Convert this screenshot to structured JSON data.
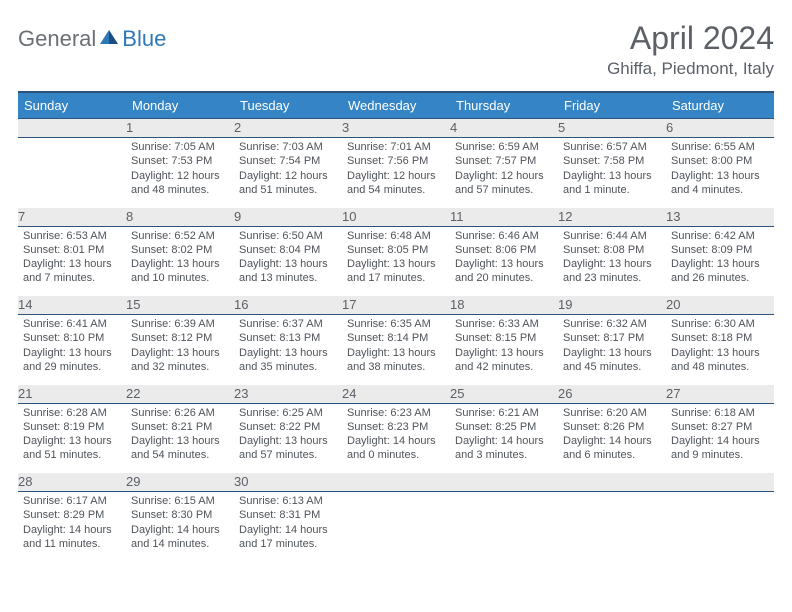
{
  "logo": {
    "general": "General",
    "blue": "Blue"
  },
  "title": "April 2024",
  "location": "Ghiffa, Piedmont, Italy",
  "colors": {
    "header_bg": "#3585c6",
    "header_border": "#2f527a",
    "header_text": "#ffffff",
    "day_header_bg": "#ebebeb",
    "text_dark": "#5c6168",
    "body_text": "#4f545a",
    "logo_gray": "#6b7076",
    "logo_blue": "#2f78b8"
  },
  "weekdays": [
    "Sunday",
    "Monday",
    "Tuesday",
    "Wednesday",
    "Thursday",
    "Friday",
    "Saturday"
  ],
  "weeks": [
    [
      null,
      {
        "n": "1",
        "sunrise": "7:05 AM",
        "sunset": "7:53 PM",
        "daylight": "12 hours and 48 minutes."
      },
      {
        "n": "2",
        "sunrise": "7:03 AM",
        "sunset": "7:54 PM",
        "daylight": "12 hours and 51 minutes."
      },
      {
        "n": "3",
        "sunrise": "7:01 AM",
        "sunset": "7:56 PM",
        "daylight": "12 hours and 54 minutes."
      },
      {
        "n": "4",
        "sunrise": "6:59 AM",
        "sunset": "7:57 PM",
        "daylight": "12 hours and 57 minutes."
      },
      {
        "n": "5",
        "sunrise": "6:57 AM",
        "sunset": "7:58 PM",
        "daylight": "13 hours and 1 minute."
      },
      {
        "n": "6",
        "sunrise": "6:55 AM",
        "sunset": "8:00 PM",
        "daylight": "13 hours and 4 minutes."
      }
    ],
    [
      {
        "n": "7",
        "sunrise": "6:53 AM",
        "sunset": "8:01 PM",
        "daylight": "13 hours and 7 minutes."
      },
      {
        "n": "8",
        "sunrise": "6:52 AM",
        "sunset": "8:02 PM",
        "daylight": "13 hours and 10 minutes."
      },
      {
        "n": "9",
        "sunrise": "6:50 AM",
        "sunset": "8:04 PM",
        "daylight": "13 hours and 13 minutes."
      },
      {
        "n": "10",
        "sunrise": "6:48 AM",
        "sunset": "8:05 PM",
        "daylight": "13 hours and 17 minutes."
      },
      {
        "n": "11",
        "sunrise": "6:46 AM",
        "sunset": "8:06 PM",
        "daylight": "13 hours and 20 minutes."
      },
      {
        "n": "12",
        "sunrise": "6:44 AM",
        "sunset": "8:08 PM",
        "daylight": "13 hours and 23 minutes."
      },
      {
        "n": "13",
        "sunrise": "6:42 AM",
        "sunset": "8:09 PM",
        "daylight": "13 hours and 26 minutes."
      }
    ],
    [
      {
        "n": "14",
        "sunrise": "6:41 AM",
        "sunset": "8:10 PM",
        "daylight": "13 hours and 29 minutes."
      },
      {
        "n": "15",
        "sunrise": "6:39 AM",
        "sunset": "8:12 PM",
        "daylight": "13 hours and 32 minutes."
      },
      {
        "n": "16",
        "sunrise": "6:37 AM",
        "sunset": "8:13 PM",
        "daylight": "13 hours and 35 minutes."
      },
      {
        "n": "17",
        "sunrise": "6:35 AM",
        "sunset": "8:14 PM",
        "daylight": "13 hours and 38 minutes."
      },
      {
        "n": "18",
        "sunrise": "6:33 AM",
        "sunset": "8:15 PM",
        "daylight": "13 hours and 42 minutes."
      },
      {
        "n": "19",
        "sunrise": "6:32 AM",
        "sunset": "8:17 PM",
        "daylight": "13 hours and 45 minutes."
      },
      {
        "n": "20",
        "sunrise": "6:30 AM",
        "sunset": "8:18 PM",
        "daylight": "13 hours and 48 minutes."
      }
    ],
    [
      {
        "n": "21",
        "sunrise": "6:28 AM",
        "sunset": "8:19 PM",
        "daylight": "13 hours and 51 minutes."
      },
      {
        "n": "22",
        "sunrise": "6:26 AM",
        "sunset": "8:21 PM",
        "daylight": "13 hours and 54 minutes."
      },
      {
        "n": "23",
        "sunrise": "6:25 AM",
        "sunset": "8:22 PM",
        "daylight": "13 hours and 57 minutes."
      },
      {
        "n": "24",
        "sunrise": "6:23 AM",
        "sunset": "8:23 PM",
        "daylight": "14 hours and 0 minutes."
      },
      {
        "n": "25",
        "sunrise": "6:21 AM",
        "sunset": "8:25 PM",
        "daylight": "14 hours and 3 minutes."
      },
      {
        "n": "26",
        "sunrise": "6:20 AM",
        "sunset": "8:26 PM",
        "daylight": "14 hours and 6 minutes."
      },
      {
        "n": "27",
        "sunrise": "6:18 AM",
        "sunset": "8:27 PM",
        "daylight": "14 hours and 9 minutes."
      }
    ],
    [
      {
        "n": "28",
        "sunrise": "6:17 AM",
        "sunset": "8:29 PM",
        "daylight": "14 hours and 11 minutes."
      },
      {
        "n": "29",
        "sunrise": "6:15 AM",
        "sunset": "8:30 PM",
        "daylight": "14 hours and 14 minutes."
      },
      {
        "n": "30",
        "sunrise": "6:13 AM",
        "sunset": "8:31 PM",
        "daylight": "14 hours and 17 minutes."
      },
      null,
      null,
      null,
      null
    ]
  ],
  "labels": {
    "sunrise": "Sunrise: ",
    "sunset": "Sunset: ",
    "daylight": "Daylight: "
  }
}
